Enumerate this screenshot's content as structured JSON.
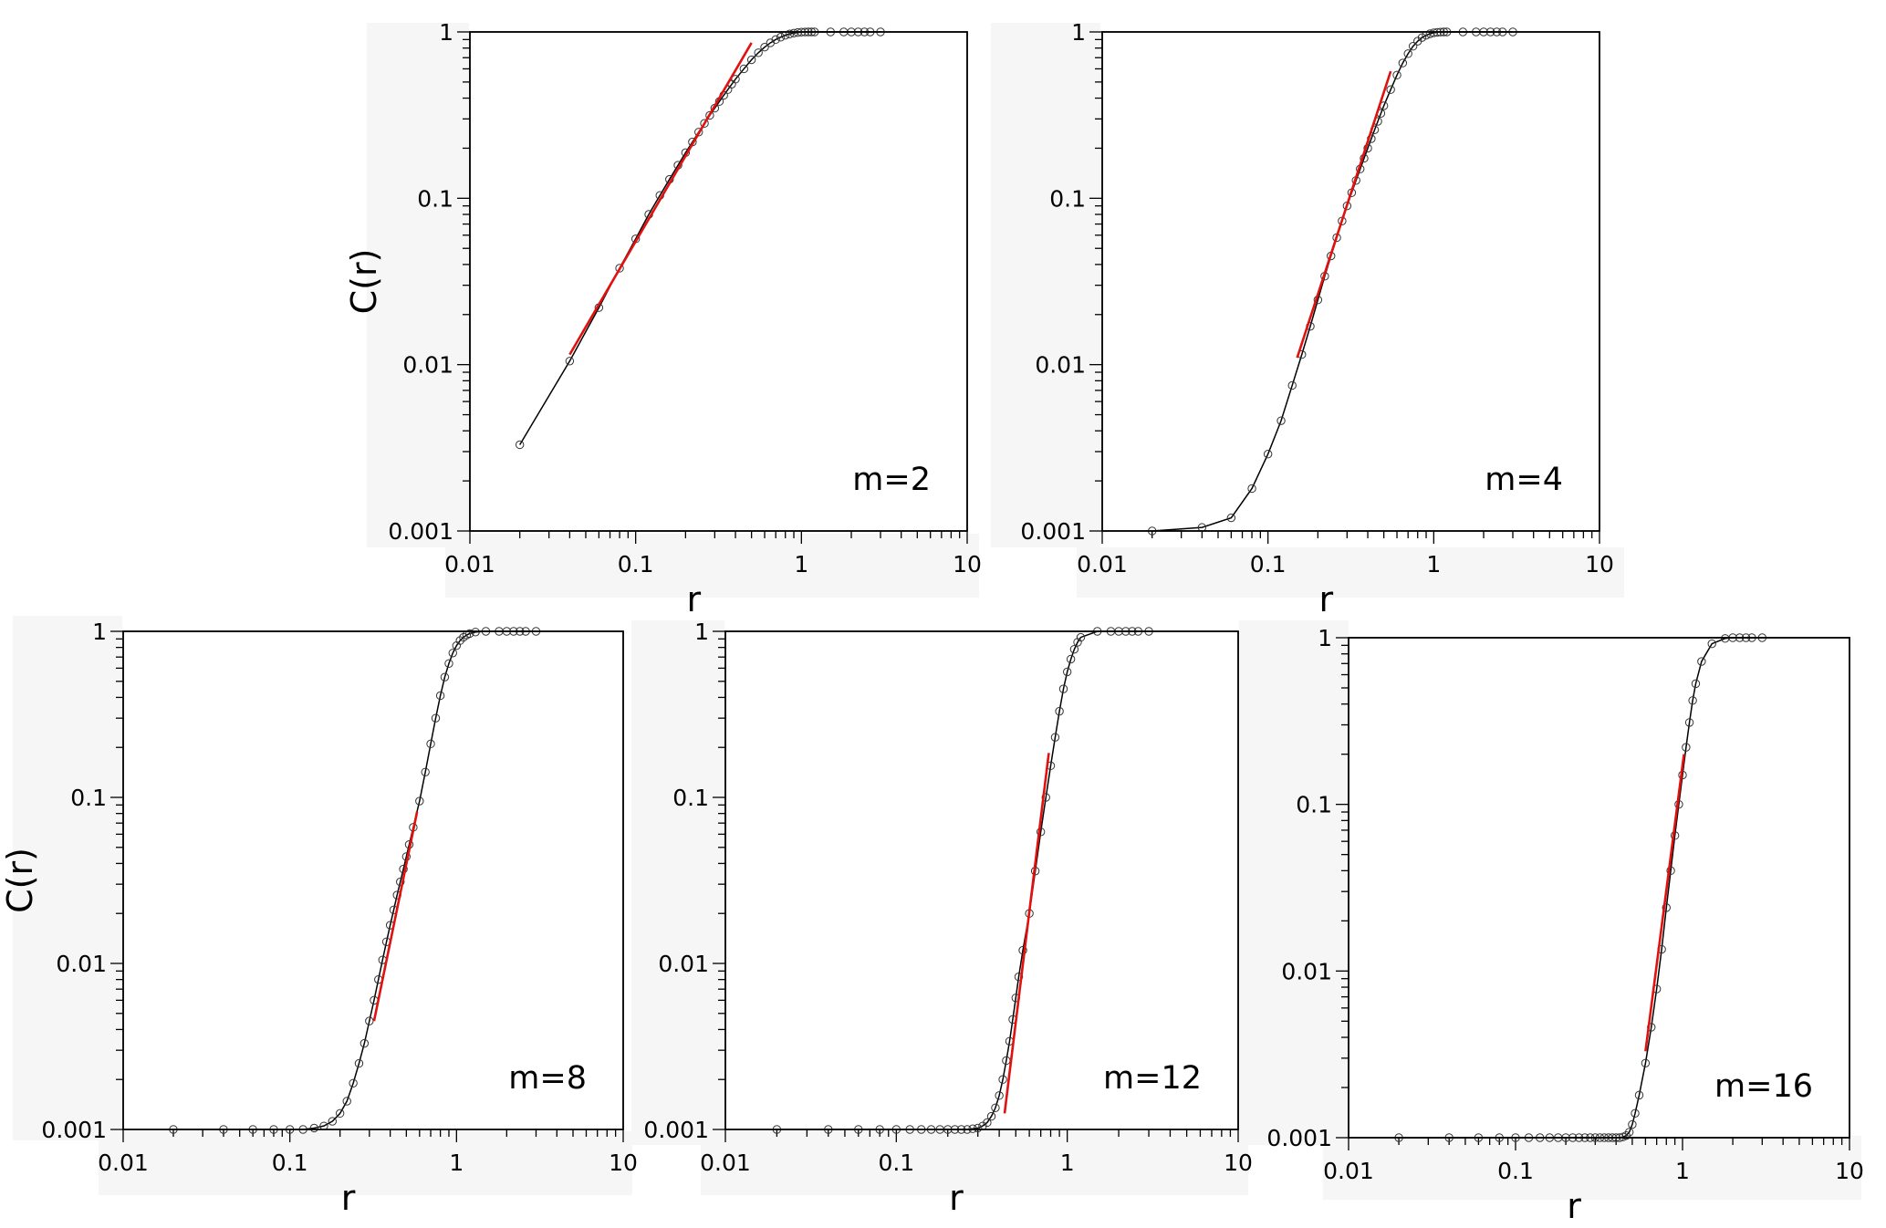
{
  "chart_data": [
    {
      "type": "line",
      "label": "m=2",
      "xlabel": "r",
      "ylabel": "C(r)",
      "xscale": "log",
      "yscale": "log",
      "xlim": [
        0.01,
        10
      ],
      "ylim": [
        0.001,
        1
      ],
      "xticks": [
        "0.01",
        "0.1",
        "1",
        "10"
      ],
      "yticks": [
        "0.001",
        "0.01",
        "0.1",
        "1"
      ],
      "grid": false,
      "series": [
        {
          "style": "black line with open circle markers",
          "x": [
            0.02,
            0.04,
            0.06,
            0.08,
            0.1,
            0.12,
            0.14,
            0.16,
            0.18,
            0.2,
            0.22,
            0.24,
            0.26,
            0.28,
            0.3,
            0.32,
            0.34,
            0.36,
            0.38,
            0.4,
            0.45,
            0.5,
            0.55,
            0.6,
            0.65,
            0.7,
            0.75,
            0.8,
            0.85,
            0.9,
            0.95,
            1.0,
            1.05,
            1.1,
            1.15,
            1.2,
            1.5,
            1.8,
            2.0,
            2.2,
            2.4,
            2.6,
            3.0
          ],
          "y": [
            0.0033,
            0.0105,
            0.022,
            0.038,
            0.057,
            0.08,
            0.104,
            0.13,
            0.158,
            0.188,
            0.218,
            0.25,
            0.282,
            0.315,
            0.348,
            0.382,
            0.416,
            0.45,
            0.485,
            0.52,
            0.6,
            0.68,
            0.75,
            0.81,
            0.86,
            0.9,
            0.93,
            0.955,
            0.972,
            0.984,
            0.992,
            0.997,
            0.999,
            1,
            1,
            1,
            1,
            1,
            1,
            1,
            1,
            1,
            1
          ]
        },
        {
          "style": "red fit line",
          "x": [
            0.04,
            0.5
          ],
          "y": [
            0.0115,
            0.86
          ]
        }
      ]
    },
    {
      "type": "line",
      "label": "m=4",
      "xlabel": "r",
      "xscale": "log",
      "yscale": "log",
      "xlim": [
        0.01,
        10
      ],
      "ylim": [
        0.001,
        1
      ],
      "xticks": [
        "0.01",
        "0.1",
        "1",
        "10"
      ],
      "yticks": [
        "0.001",
        "0.01",
        "0.1",
        "1"
      ],
      "grid": false,
      "series": [
        {
          "style": "black line with open circle markers",
          "x": [
            0.02,
            0.04,
            0.06,
            0.08,
            0.1,
            0.12,
            0.14,
            0.16,
            0.18,
            0.2,
            0.22,
            0.24,
            0.26,
            0.28,
            0.3,
            0.32,
            0.34,
            0.36,
            0.38,
            0.4,
            0.42,
            0.44,
            0.46,
            0.48,
            0.5,
            0.55,
            0.6,
            0.65,
            0.7,
            0.75,
            0.8,
            0.85,
            0.9,
            0.95,
            1.0,
            1.05,
            1.1,
            1.15,
            1.2,
            1.5,
            1.8,
            2.0,
            2.2,
            2.4,
            2.6,
            3.0
          ],
          "y": [
            0.001,
            0.00105,
            0.0012,
            0.0018,
            0.0029,
            0.0046,
            0.0075,
            0.0115,
            0.017,
            0.0245,
            0.034,
            0.045,
            0.058,
            0.073,
            0.09,
            0.108,
            0.128,
            0.15,
            0.174,
            0.2,
            0.228,
            0.258,
            0.29,
            0.324,
            0.36,
            0.45,
            0.55,
            0.65,
            0.74,
            0.82,
            0.88,
            0.925,
            0.955,
            0.975,
            0.988,
            0.995,
            0.998,
            1,
            1,
            1,
            1,
            1,
            1,
            1,
            1,
            1
          ]
        },
        {
          "style": "red fit line",
          "x": [
            0.15,
            0.55
          ],
          "y": [
            0.011,
            0.58
          ]
        }
      ]
    },
    {
      "type": "line",
      "label": "m=8",
      "xlabel": "r",
      "ylabel": "C(r)",
      "xscale": "log",
      "yscale": "log",
      "xlim": [
        0.01,
        10
      ],
      "ylim": [
        0.001,
        1
      ],
      "xticks": [
        "0.01",
        "0.1",
        "1",
        "10"
      ],
      "yticks": [
        "0.001",
        "0.01",
        "0.1",
        "1"
      ],
      "grid": false,
      "series": [
        {
          "style": "black line with open circle markers",
          "x": [
            0.02,
            0.04,
            0.06,
            0.08,
            0.1,
            0.12,
            0.14,
            0.16,
            0.18,
            0.2,
            0.22,
            0.24,
            0.26,
            0.28,
            0.3,
            0.32,
            0.34,
            0.36,
            0.38,
            0.4,
            0.42,
            0.44,
            0.46,
            0.48,
            0.5,
            0.52,
            0.55,
            0.6,
            0.65,
            0.7,
            0.75,
            0.8,
            0.85,
            0.9,
            0.95,
            1.0,
            1.05,
            1.1,
            1.15,
            1.2,
            1.3,
            1.5,
            1.8,
            2.0,
            2.2,
            2.4,
            2.6,
            3.0
          ],
          "y": [
            0.001,
            0.001,
            0.001,
            0.001,
            0.001,
            0.001,
            0.00102,
            0.00105,
            0.00112,
            0.00125,
            0.00148,
            0.0019,
            0.0025,
            0.0033,
            0.0045,
            0.006,
            0.008,
            0.0105,
            0.0135,
            0.017,
            0.021,
            0.0258,
            0.031,
            0.037,
            0.044,
            0.052,
            0.066,
            0.095,
            0.142,
            0.21,
            0.3,
            0.41,
            0.53,
            0.64,
            0.74,
            0.82,
            0.88,
            0.92,
            0.95,
            0.97,
            0.99,
            1,
            1,
            1,
            1,
            1,
            1,
            1
          ]
        },
        {
          "style": "red fit line",
          "x": [
            0.32,
            0.58
          ],
          "y": [
            0.0045,
            0.082
          ]
        }
      ]
    },
    {
      "type": "line",
      "label": "m=12",
      "xlabel": "r",
      "xscale": "log",
      "yscale": "log",
      "xlim": [
        0.01,
        10
      ],
      "ylim": [
        0.001,
        1
      ],
      "xticks": [
        "0.01",
        "0.1",
        "1",
        "10"
      ],
      "yticks": [
        "0.001",
        "0.01",
        "0.1",
        "1"
      ],
      "grid": false,
      "series": [
        {
          "style": "black line with open circle markers",
          "x": [
            0.02,
            0.04,
            0.06,
            0.08,
            0.1,
            0.12,
            0.14,
            0.16,
            0.18,
            0.2,
            0.22,
            0.24,
            0.26,
            0.28,
            0.3,
            0.32,
            0.34,
            0.36,
            0.38,
            0.4,
            0.42,
            0.44,
            0.46,
            0.48,
            0.5,
            0.52,
            0.55,
            0.6,
            0.65,
            0.7,
            0.75,
            0.8,
            0.85,
            0.9,
            0.95,
            1.0,
            1.05,
            1.1,
            1.15,
            1.2,
            1.5,
            1.8,
            2.0,
            2.2,
            2.4,
            2.6,
            3.0
          ],
          "y": [
            0.001,
            0.001,
            0.001,
            0.001,
            0.001,
            0.001,
            0.001,
            0.001,
            0.001,
            0.001,
            0.001,
            0.001,
            0.001,
            0.00101,
            0.00102,
            0.00105,
            0.0011,
            0.0012,
            0.00135,
            0.0016,
            0.002,
            0.0026,
            0.0034,
            0.0046,
            0.0062,
            0.0083,
            0.012,
            0.02,
            0.036,
            0.062,
            0.1,
            0.155,
            0.23,
            0.33,
            0.45,
            0.57,
            0.68,
            0.78,
            0.86,
            0.92,
            1,
            1,
            1,
            1,
            1,
            1,
            1
          ]
        },
        {
          "style": "red fit line",
          "x": [
            0.43,
            0.78
          ],
          "y": [
            0.00125,
            0.185
          ]
        }
      ]
    },
    {
      "type": "line",
      "label": "m=16",
      "xlabel": "r",
      "xscale": "log",
      "yscale": "log",
      "xlim": [
        0.01,
        10
      ],
      "ylim": [
        0.001,
        1
      ],
      "xticks": [
        "0.01",
        "0.1",
        "1",
        "10"
      ],
      "yticks": [
        "0.001",
        "0.01",
        "0.1",
        "1"
      ],
      "grid": false,
      "series": [
        {
          "style": "black line with open circle markers",
          "x": [
            0.02,
            0.04,
            0.06,
            0.08,
            0.1,
            0.12,
            0.14,
            0.16,
            0.18,
            0.2,
            0.22,
            0.24,
            0.26,
            0.28,
            0.3,
            0.32,
            0.34,
            0.36,
            0.38,
            0.4,
            0.42,
            0.44,
            0.46,
            0.48,
            0.5,
            0.52,
            0.55,
            0.6,
            0.65,
            0.7,
            0.75,
            0.8,
            0.85,
            0.9,
            0.95,
            1.0,
            1.05,
            1.1,
            1.15,
            1.2,
            1.3,
            1.5,
            1.8,
            2.0,
            2.2,
            2.4,
            2.6,
            3.0
          ],
          "y": [
            0.001,
            0.001,
            0.001,
            0.001,
            0.001,
            0.001,
            0.001,
            0.001,
            0.001,
            0.001,
            0.001,
            0.001,
            0.001,
            0.001,
            0.001,
            0.001,
            0.001,
            0.001,
            0.001,
            0.001,
            0.001,
            0.00101,
            0.00103,
            0.00108,
            0.0012,
            0.0014,
            0.0018,
            0.0028,
            0.0046,
            0.0078,
            0.0135,
            0.024,
            0.04,
            0.065,
            0.1,
            0.15,
            0.22,
            0.31,
            0.42,
            0.53,
            0.72,
            0.92,
            0.99,
            1,
            1,
            1,
            1,
            1
          ]
        },
        {
          "style": "red fit line",
          "x": [
            0.6,
            1.02
          ],
          "y": [
            0.0033,
            0.2
          ]
        }
      ]
    }
  ]
}
